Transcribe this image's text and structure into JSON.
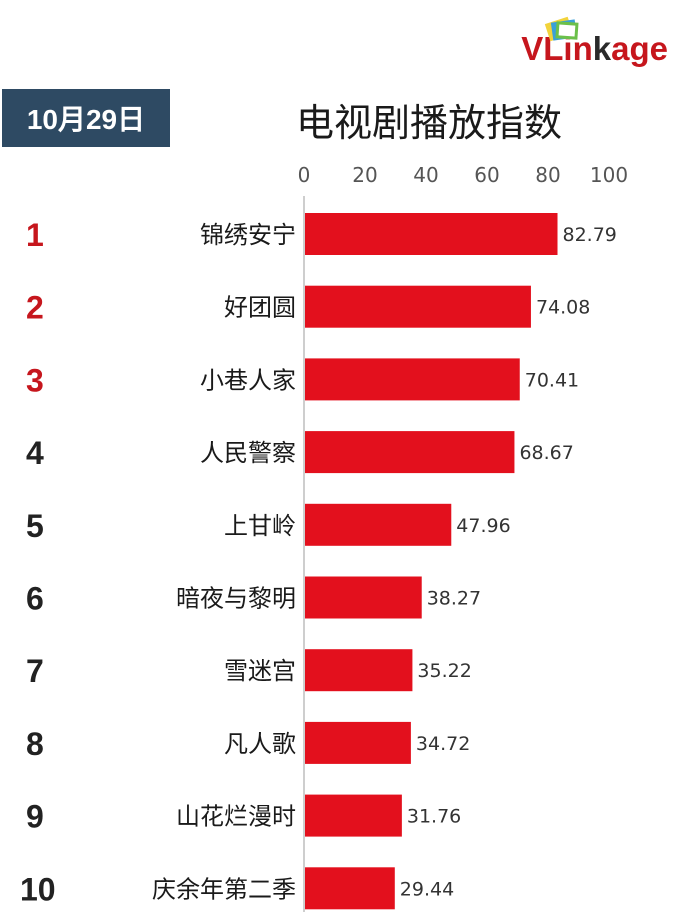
{
  "header": {
    "date": "10月29日",
    "title": "电视剧播放指数",
    "brand": {
      "prefix": "VLin",
      "middle": "k",
      "suffix": "age"
    }
  },
  "colors": {
    "bar": "#e3101d",
    "rank_top3": "#c6161d",
    "rank_other": "#222222",
    "date_badge": "#2e4a63"
  },
  "chart_data": {
    "type": "bar",
    "orientation": "horizontal",
    "title": "电视剧播放指数",
    "categories": [
      "锦绣安宁",
      "好团圆",
      "小巷人家",
      "人民警察",
      "上甘岭",
      "暗夜与黎明",
      "雪迷宫",
      "凡人歌",
      "山花烂漫时",
      "庆余年第二季"
    ],
    "ranks": [
      "1",
      "2",
      "3",
      "4",
      "5",
      "6",
      "7",
      "8",
      "9",
      "10"
    ],
    "values": [
      82.79,
      74.08,
      70.41,
      68.67,
      47.96,
      38.27,
      35.22,
      34.72,
      31.76,
      29.44
    ],
    "value_labels": [
      "82.79",
      "74.08",
      "70.41",
      "68.67",
      "47.96",
      "38.27",
      "35.22",
      "34.72",
      "31.76",
      "29.44"
    ],
    "xlim": [
      0,
      100
    ],
    "xticks": [
      "0",
      "20",
      "40",
      "60",
      "80",
      "100"
    ],
    "xtick_values": [
      0,
      20,
      40,
      60,
      80,
      100
    ],
    "axis_position": "top",
    "grid": false,
    "xlabel": "",
    "ylabel": ""
  }
}
